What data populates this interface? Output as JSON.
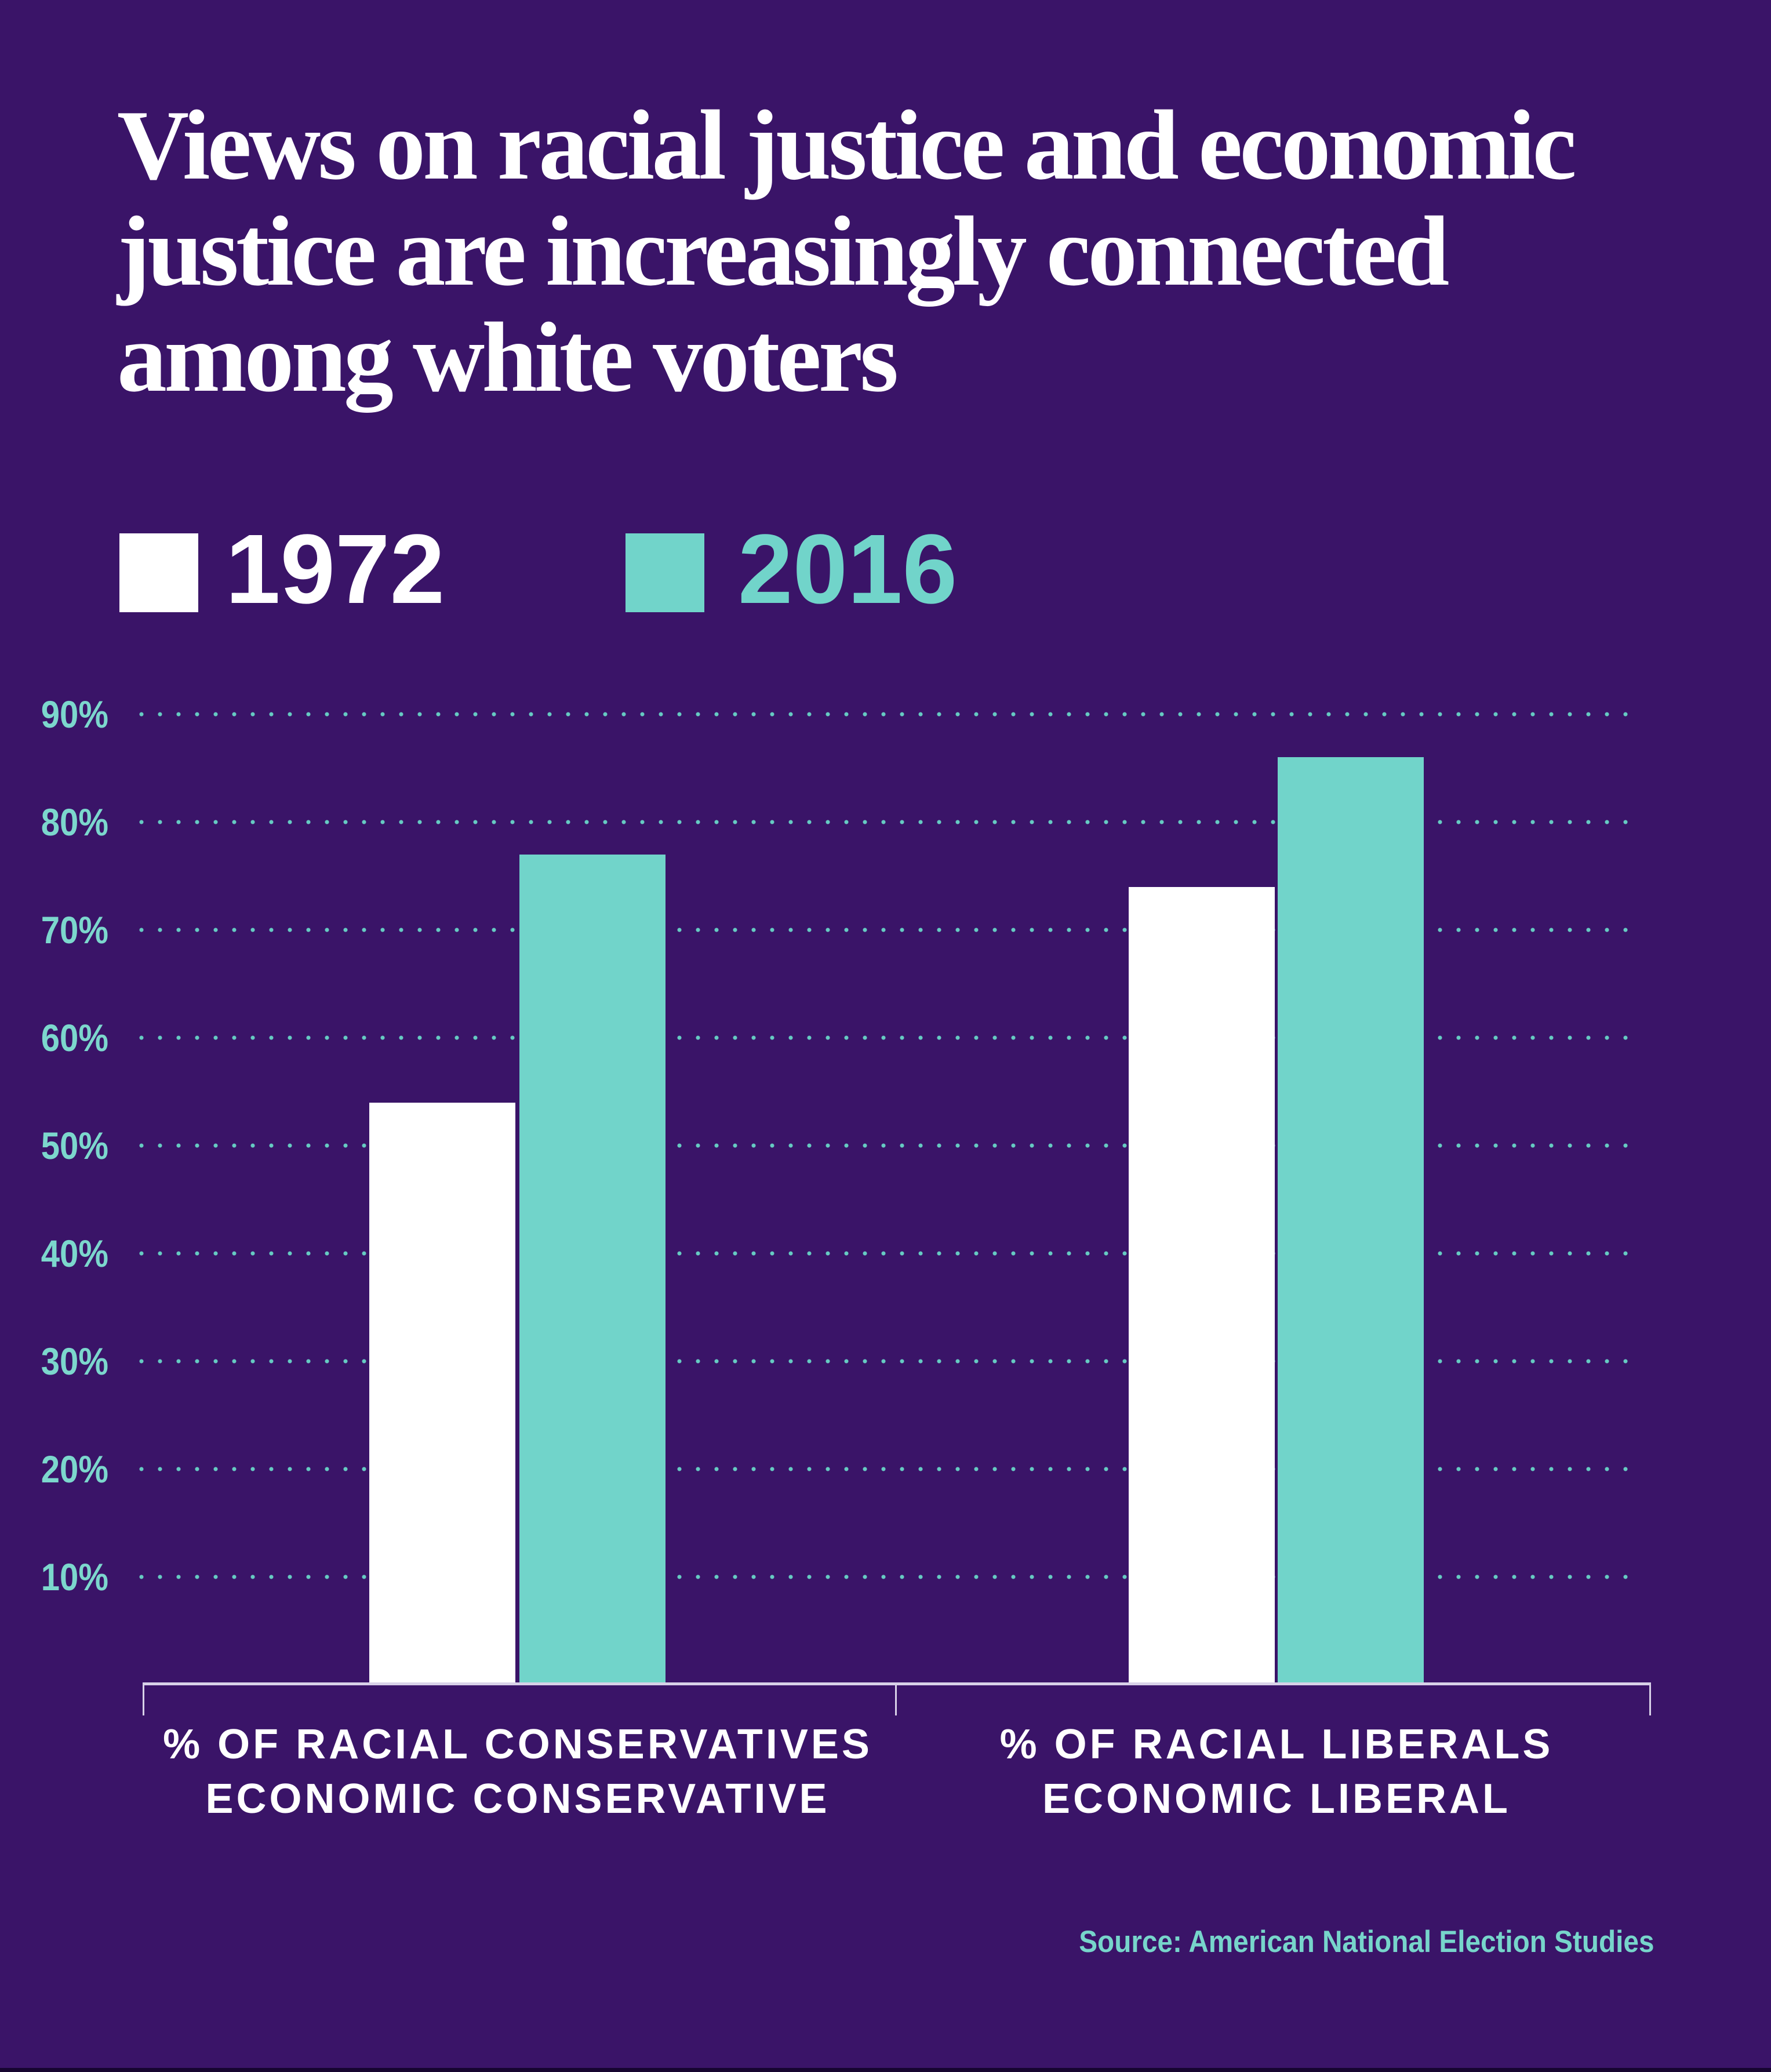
{
  "page": {
    "background_color": "#3A1468",
    "footer_strip_color": "#160530"
  },
  "header": {
    "title_lines": [
      "Views on racial justice and economic",
      "justice are increasingly connected",
      "among white voters"
    ],
    "title_color": "#FFFFFF"
  },
  "legend": {
    "items": [
      {
        "label": "1972",
        "color": "#FFFFFF"
      },
      {
        "label": "2016",
        "color": "#71D4CA"
      }
    ]
  },
  "chart_data": {
    "type": "bar",
    "title": "Views on racial justice and economic justice are increasingly connected among white voters",
    "categories": [
      "% OF RACIAL CONSERVATIVES ECONOMIC CONSERVATIVE",
      "% OF RACIAL LIBERALS ECONOMIC LIBERAL"
    ],
    "category_lines": [
      [
        "% OF RACIAL CONSERVATIVES",
        "ECONOMIC CONSERVATIVE"
      ],
      [
        "% OF RACIAL LIBERALS",
        "ECONOMIC LIBERAL"
      ]
    ],
    "series": [
      {
        "name": "1972",
        "color": "#FFFFFF",
        "values": [
          54,
          74
        ]
      },
      {
        "name": "2016",
        "color": "#71D4CA",
        "values": [
          77,
          86
        ]
      }
    ],
    "y_ticks": [
      "90%",
      "80%",
      "70%",
      "60%",
      "50%",
      "40%",
      "30%",
      "20%",
      "10%"
    ],
    "y_tick_values": [
      90,
      80,
      70,
      60,
      50,
      40,
      30,
      20,
      10
    ],
    "ylim": [
      0,
      95
    ],
    "xlabel": "",
    "ylabel": "",
    "grid": "dotted horizontal gridlines",
    "gridline_dot_color": "#66CBC2",
    "axis_tick_label_color": "#7CD7CD",
    "axis_line_color": "#D8D1E8",
    "category_label_color": "#FFFFFF",
    "legend_position": "top-left"
  },
  "footer": {
    "source": "Source: American National Election Studies",
    "source_color": "#77D5CB"
  }
}
